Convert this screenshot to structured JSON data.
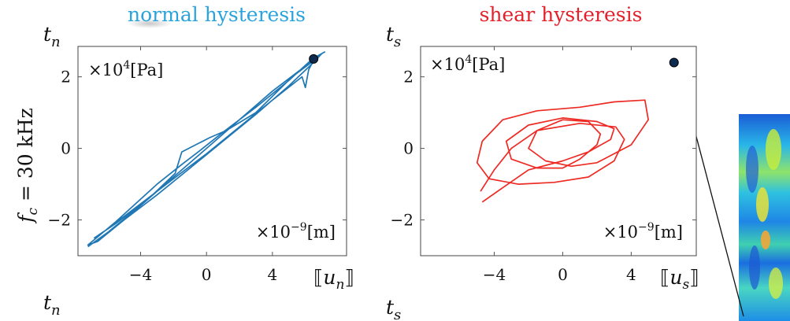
{
  "row_label": {
    "italic": "f",
    "sub": "c",
    "rest": " = 30 kHz"
  },
  "scatter_point_color": "#0d2a4f",
  "chart_data": [
    {
      "type": "line",
      "title": "normal hysteresis",
      "title_color": "#2aa3dc",
      "line_color": "#1f77b4",
      "ylabel": {
        "base": "t",
        "sub": "n"
      },
      "ylabel_bottom": {
        "base": "t",
        "sub": "n"
      },
      "xlabel": {
        "base": "u",
        "sub": "n"
      },
      "y_multiplier": {
        "base": "×10",
        "exp": "4",
        "unit": "[Pa]"
      },
      "x_multiplier": {
        "base": "×10",
        "exp": "−9",
        "unit": "[m]"
      },
      "xlim": [
        -7.8,
        8.5
      ],
      "ylim": [
        -3.0,
        2.85
      ],
      "xticks": [
        {
          "v": -4,
          "label": "−4"
        },
        {
          "v": 0,
          "label": "0"
        },
        {
          "v": 4,
          "label": "4"
        }
      ],
      "yticks": [
        {
          "v": 2,
          "label": "2"
        },
        {
          "v": 0,
          "label": "0"
        },
        {
          "v": -2,
          "label": "−2"
        }
      ],
      "series": [
        {
          "x": [
            -7.2,
            -6.0,
            -4.0,
            -2.0,
            0.0,
            2.0,
            4.0,
            6.0,
            7.0,
            6.6,
            5.0,
            3.0,
            1.0,
            -1.0,
            -3.0,
            -5.0,
            -6.6,
            -7.2,
            -5.5,
            -3.0,
            -1.5,
            -0.5,
            1.0,
            3.0,
            5.0,
            6.3,
            6.8,
            5.2,
            3.0,
            1.2,
            0.2,
            -1.5,
            -1.9,
            -3.5,
            -5.5,
            -6.8,
            -6.0,
            -4.0,
            -2.0,
            0.0,
            2.0,
            4.0,
            5.8,
            6.0,
            6.2,
            6.6,
            7.2
          ],
          "y": [
            -2.75,
            -2.35,
            -1.6,
            -0.8,
            0.0,
            0.8,
            1.6,
            2.3,
            2.65,
            2.45,
            1.75,
            0.95,
            0.2,
            -0.55,
            -1.3,
            -2.0,
            -2.6,
            -2.7,
            -2.05,
            -1.0,
            -0.45,
            -0.1,
            0.45,
            1.15,
            1.9,
            2.45,
            2.55,
            2.0,
            1.0,
            0.5,
            0.3,
            -0.1,
            -0.7,
            -1.4,
            -2.1,
            -2.5,
            -2.25,
            -1.55,
            -0.85,
            -0.15,
            0.6,
            1.35,
            2.0,
            1.7,
            2.2,
            2.55,
            2.7
          ]
        }
      ],
      "point": {
        "x": 6.5,
        "y": 2.5
      }
    },
    {
      "type": "line",
      "title": "shear hysteresis",
      "title_color": "#e3212b",
      "line_color": "#ee2a24",
      "ylabel": {
        "base": "t",
        "sub": "s"
      },
      "ylabel_bottom": {
        "base": "t",
        "sub": "s"
      },
      "xlabel": {
        "base": "u",
        "sub": "s"
      },
      "y_multiplier": {
        "base": "×10",
        "exp": "4",
        "unit": "[Pa]"
      },
      "x_multiplier": {
        "base": "×10",
        "exp": "−9",
        "unit": "[m]"
      },
      "xlim": [
        -8.3,
        7.8
      ],
      "ylim": [
        -3.0,
        2.85
      ],
      "xticks": [
        {
          "v": -4,
          "label": "−4"
        },
        {
          "v": 0,
          "label": "0"
        },
        {
          "v": 4,
          "label": "4"
        }
      ],
      "yticks": [
        {
          "v": 2,
          "label": "2"
        },
        {
          "v": 0,
          "label": "0"
        },
        {
          "v": -2,
          "label": "−2"
        }
      ],
      "series": [
        {
          "x": [
            -4.7,
            -3.5,
            -2.0,
            0.0,
            1.5,
            2.8,
            3.0,
            2.0,
            0.0,
            -2.0,
            -3.3,
            -3.0,
            -1.5,
            0.0,
            1.0,
            2.0,
            2.2,
            1.5,
            0.0,
            -1.5,
            -2.0,
            -1.0,
            0.5,
            2.0,
            4.0,
            5.0,
            4.8,
            3.0,
            1.0,
            -1.5,
            -3.5,
            -4.7,
            -5.0,
            -4.3,
            -2.6,
            -0.5,
            1.5,
            3.0,
            3.6,
            3.1,
            1.0,
            -1.5,
            -3.0,
            -4.0,
            -4.8
          ],
          "y": [
            -1.5,
            -1.1,
            -0.6,
            -0.35,
            -0.1,
            0.25,
            0.55,
            0.75,
            0.85,
            0.65,
            0.2,
            -0.3,
            -0.55,
            -0.55,
            -0.3,
            0.1,
            0.4,
            0.75,
            0.8,
            0.5,
            0.0,
            -0.35,
            -0.5,
            -0.4,
            0.1,
            0.8,
            1.35,
            1.3,
            1.15,
            1.05,
            0.8,
            0.2,
            -0.4,
            -0.85,
            -1.0,
            -0.95,
            -0.8,
            -0.35,
            0.25,
            0.6,
            0.7,
            0.5,
            0.0,
            -0.6,
            -1.2
          ]
        }
      ],
      "point": {
        "x": 6.5,
        "y": 2.4
      }
    }
  ]
}
